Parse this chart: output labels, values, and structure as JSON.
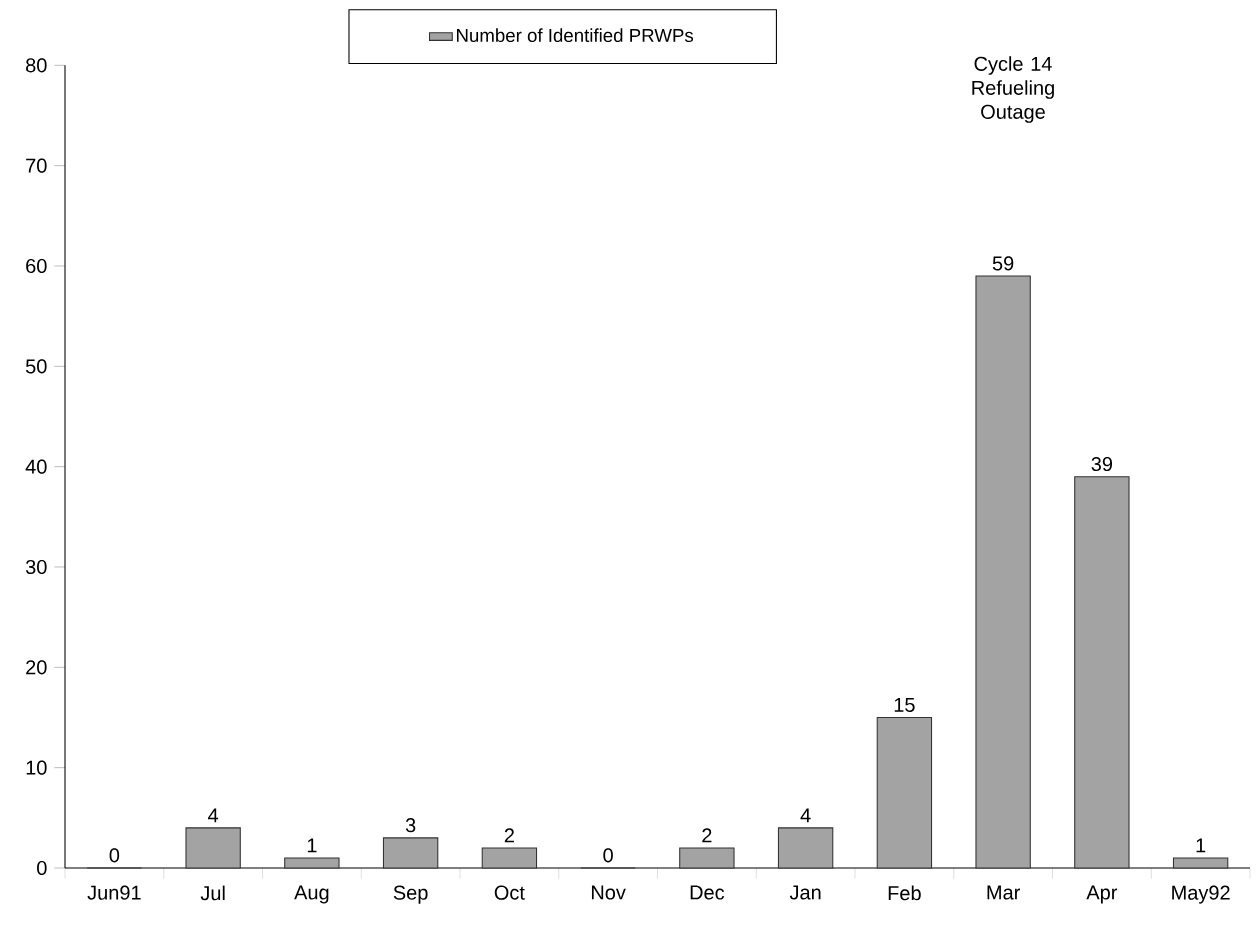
{
  "chart_data": {
    "type": "bar",
    "categories": [
      "Jun91",
      "Jul",
      "Aug",
      "Sep",
      "Oct",
      "Nov",
      "Dec",
      "Jan",
      "Feb",
      "Mar",
      "Apr",
      "May92"
    ],
    "series": [
      {
        "name": "Number of Identified PRWPs",
        "color": "#333333",
        "values": [
          0,
          4,
          1,
          3,
          2,
          0,
          2,
          4,
          15,
          59,
          39,
          1
        ]
      }
    ],
    "ylim": [
      0,
      80
    ],
    "yticks": [
      0,
      10,
      20,
      30,
      40,
      50,
      60,
      70,
      80
    ],
    "data_labels": true,
    "legend": "top",
    "annotations": [
      "Cycle 14 Refueling Outage"
    ]
  }
}
